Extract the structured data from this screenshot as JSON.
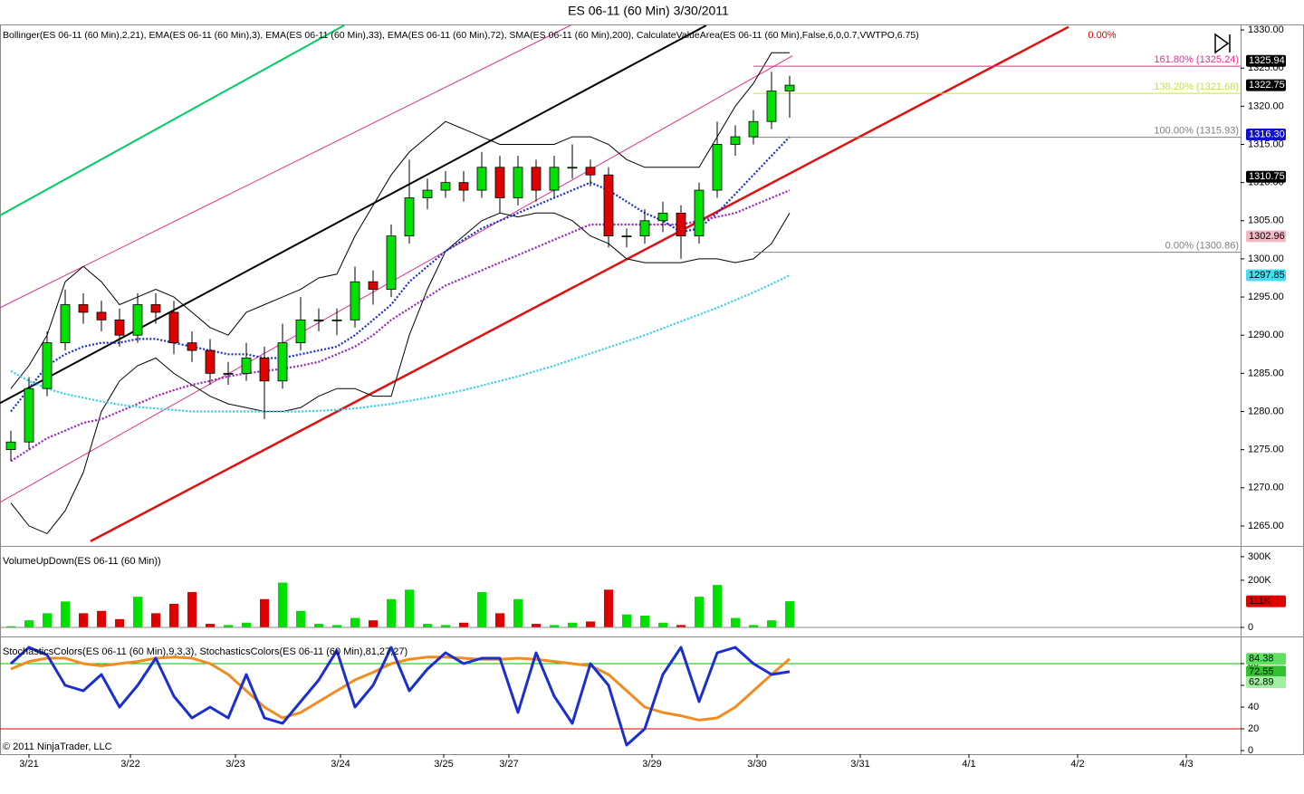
{
  "title": "ES 06-11 (60 Min)  3/30/2011",
  "copyright": "© 2011 NinjaTrader, LLC",
  "chart_data": [
    {
      "type": "candlestick",
      "label": "Bollinger(ES 06-11 (60 Min),2,21), EMA(ES 06-11 (60 Min),3), EMA(ES 06-11 (60 Min),33), EMA(ES 06-11 (60 Min),72), SMA(ES 06-11 (60 Min),200), CalculateValueArea(ES 06-11 (60 Min),False,6,0,0.7,VWTPO,6.75)",
      "xlim": [
        -0.6,
        67.9
      ],
      "xticks": [
        {
          "value": 1,
          "label": "3/21"
        },
        {
          "value": 6.6,
          "label": "3/22"
        },
        {
          "value": 12.4,
          "label": "3/23"
        },
        {
          "value": 18.2,
          "label": "3/24"
        },
        {
          "value": 23.9,
          "label": "3/25"
        },
        {
          "value": 27.5,
          "label": "3/27"
        },
        {
          "value": 35.4,
          "label": "3/29"
        },
        {
          "value": 41.2,
          "label": "3/30"
        },
        {
          "value": 46.9,
          "label": "3/31"
        },
        {
          "value": 52.9,
          "label": "4/1"
        },
        {
          "value": 58.9,
          "label": "4/2"
        },
        {
          "value": 64.9,
          "label": "4/3"
        }
      ],
      "ylim": [
        1262.5,
        1330.6
      ],
      "yticks": [
        {
          "value": 1265,
          "label": "1265.00"
        },
        {
          "value": 1270,
          "label": "1270.00"
        },
        {
          "value": 1275,
          "label": "1275.00"
        },
        {
          "value": 1280,
          "label": "1280.00"
        },
        {
          "value": 1285,
          "label": "1285.00"
        },
        {
          "value": 1290,
          "label": "1290.00"
        },
        {
          "value": 1295,
          "label": "1295.00"
        },
        {
          "value": 1300,
          "label": "1300.00"
        },
        {
          "value": 1305,
          "label": "1305.00"
        },
        {
          "value": 1310,
          "label": "1310.00"
        },
        {
          "value": 1315,
          "label": "1315.00"
        },
        {
          "value": 1320,
          "label": "1320.00"
        },
        {
          "value": 1325,
          "label": "1325.00"
        },
        {
          "value": 1330,
          "label": "1330.00"
        }
      ],
      "up_color": "#00e000",
      "down_color": "#e00000",
      "open": [
        1275,
        1276,
        1283,
        1289,
        1294,
        1293,
        1292,
        1290,
        1294,
        1293,
        1289,
        1288,
        1285,
        1285,
        1287,
        1284,
        1289,
        1292,
        1292,
        1292,
        1297,
        1296,
        1303,
        1308,
        1309,
        1310,
        1309,
        1312,
        1308,
        1312,
        1309,
        1312,
        1312,
        1311,
        1303,
        1303,
        1305,
        1306,
        1303,
        1309,
        1315,
        1316,
        1318,
        1322
      ],
      "high": [
        1277.5,
        1284.5,
        1290.5,
        1296,
        1295.5,
        1294.5,
        1293.5,
        1295.5,
        1295.5,
        1294.5,
        1290.5,
        1289.5,
        1286.5,
        1289,
        1288.5,
        1291.5,
        1295,
        1293.5,
        1293.5,
        1299,
        1298.5,
        1304.5,
        1313,
        1310.5,
        1311.5,
        1311.5,
        1314,
        1313.5,
        1313.5,
        1313,
        1313.5,
        1315,
        1313,
        1312,
        1304,
        1306.5,
        1307.5,
        1307,
        1310,
        1318,
        1317.5,
        1319.5,
        1324.5,
        1324
      ],
      "low": [
        1273.5,
        1275,
        1282,
        1288,
        1291.5,
        1290.5,
        1288.5,
        1289,
        1291.5,
        1287.5,
        1286.5,
        1283.5,
        1283.5,
        1284,
        1279,
        1283,
        1288,
        1290.5,
        1290,
        1291,
        1294,
        1295,
        1302,
        1306.5,
        1308,
        1307.5,
        1308,
        1306,
        1307,
        1307.5,
        1308,
        1310.5,
        1309.5,
        1301.5,
        1301.5,
        1302,
        1303.5,
        1300,
        1302,
        1308,
        1313.5,
        1315,
        1317,
        1318.5
      ],
      "close": [
        1276,
        1283,
        1289,
        1294,
        1293,
        1292,
        1290,
        1294,
        1293,
        1289,
        1288,
        1285,
        1285,
        1287,
        1284,
        1289,
        1292,
        1292,
        1292,
        1297,
        1296,
        1303,
        1308,
        1309,
        1310,
        1309,
        1312,
        1308,
        1312,
        1309,
        1312,
        1312,
        1311,
        1303,
        1303,
        1305,
        1306,
        1303,
        1309,
        1315,
        1316,
        1318,
        1322,
        1322.75
      ],
      "overlays": [
        {
          "color": "#000000",
          "style": "solid",
          "values": [
            1283,
            1286,
            1290,
            1297,
            1299,
            1297,
            1294,
            1295,
            1296,
            1295,
            1293,
            1291,
            1290,
            1293,
            1294,
            1295,
            1296,
            1297.5,
            1298,
            1303,
            1307,
            1311,
            1314,
            1316,
            1318,
            1317,
            1316,
            1315,
            1315,
            1315,
            1315,
            1316,
            1316,
            1315,
            1313,
            1312,
            1312,
            1312,
            1312,
            1316,
            1320,
            1323,
            1327,
            1327
          ]
        },
        {
          "color": "#000000",
          "style": "solid",
          "values": [
            1268,
            1265,
            1264,
            1267,
            1272,
            1280,
            1284,
            1286,
            1287,
            1285,
            1283.5,
            1282,
            1281,
            1280.5,
            1280,
            1280,
            1280.5,
            1282,
            1283,
            1283,
            1282,
            1282,
            1290,
            1296,
            1301,
            1303,
            1305,
            1306,
            1305.5,
            1306,
            1306,
            1305,
            1303,
            1302,
            1300,
            1299.5,
            1299.5,
            1299.5,
            1300,
            1300,
            1299.5,
            1300,
            1302,
            1306
          ]
        },
        {
          "color": "#1a2fd0",
          "style": "dotted",
          "values": [
            1280,
            1283,
            1286,
            1287.5,
            1288.5,
            1289,
            1289,
            1289.5,
            1289.5,
            1289,
            1288.5,
            1288,
            1287.5,
            1287.5,
            1287,
            1287,
            1287.5,
            1288,
            1288.5,
            1290,
            1292,
            1294,
            1297,
            1299,
            1301,
            1302.5,
            1304,
            1305,
            1306,
            1307,
            1308,
            1309,
            1310,
            1309,
            1307.5,
            1306,
            1305,
            1303.5,
            1304,
            1306,
            1308.5,
            1311,
            1313.5,
            1316
          ]
        },
        {
          "color": "#9a20c0",
          "style": "dotted",
          "values": [
            1273.5,
            1275,
            1276.5,
            1277.5,
            1278.5,
            1279,
            1280,
            1281,
            1282,
            1282.8,
            1283.5,
            1284,
            1284.6,
            1285,
            1285.3,
            1285.6,
            1286,
            1286.5,
            1287.5,
            1288.5,
            1290,
            1292,
            1293.5,
            1295,
            1296.5,
            1297.5,
            1298.5,
            1299.5,
            1300.5,
            1301.5,
            1302.5,
            1303.5,
            1304.5,
            1304.5,
            1304.5,
            1304.5,
            1304.5,
            1304.5,
            1305,
            1305.5,
            1306,
            1307,
            1308,
            1309
          ]
        },
        {
          "color": "#30d0f0",
          "style": "dotted",
          "values": [
            1285.3,
            1284,
            1283,
            1282.3,
            1281.8,
            1281.3,
            1280.9,
            1280.6,
            1280.4,
            1280.2,
            1280,
            1280,
            1280,
            1280,
            1280,
            1280,
            1280,
            1280.1,
            1280.2,
            1280.4,
            1280.7,
            1281,
            1281.4,
            1281.8,
            1282.3,
            1282.8,
            1283.4,
            1284,
            1284.6,
            1285.3,
            1286,
            1286.8,
            1287.6,
            1288.4,
            1289.2,
            1290,
            1290.9,
            1291.8,
            1292.7,
            1293.6,
            1294.6,
            1295.6,
            1296.7,
            1297.85
          ]
        }
      ],
      "trend_lines": [
        {
          "color": "#00cc66",
          "width": 2,
          "x": [
            -0.6,
            18.4
          ],
          "y": [
            1305.7,
            1330.6
          ]
        },
        {
          "color": "#000000",
          "width": 2,
          "x": [
            -0.6,
            38.4
          ],
          "y": [
            1281.1,
            1330.6
          ]
        },
        {
          "color": "#e01010",
          "width": 2.5,
          "x": [
            4.4,
            58.4
          ],
          "y": [
            1263,
            1330.4
          ]
        },
        {
          "color": "#e0308a",
          "width": 1,
          "x": [
            -0.6,
            30.9
          ],
          "y": [
            1293.6,
            1330.6
          ]
        },
        {
          "color": "#e0308a",
          "width": 1,
          "x": [
            -0.6,
            43.15
          ],
          "y": [
            1268.1,
            1326.6
          ]
        }
      ],
      "fib_levels": [
        {
          "value": 1325.24,
          "label": "161.80% (1325.24)",
          "color": "#e0308a"
        },
        {
          "value": 1321.68,
          "label": "138.20% (1321.68)",
          "color": "#c8e040"
        },
        {
          "value": 1315.93,
          "label": "100.00% (1315.93)",
          "color": "#808080"
        },
        {
          "value": 1300.86,
          "label": "0.00% (1300.86)",
          "color": "#808080"
        }
      ],
      "fib_start": 41,
      "annotation": "0.00%",
      "markers": [
        {
          "value": 1325.94,
          "label": "1325.94",
          "bg": "#000000",
          "fg": "#ffffff"
        },
        {
          "value": 1322.75,
          "label": "1322.75",
          "bg": "#000000",
          "fg": "#ffffff"
        },
        {
          "value": 1316.3,
          "label": "1316.30",
          "bg": "#1010c8",
          "fg": "#ffffff"
        },
        {
          "value": 1310.75,
          "label": "1310.75",
          "bg": "#000000",
          "fg": "#ffffff"
        },
        {
          "value": 1302.96,
          "label": "1302.96",
          "bg": "#f4b8c4",
          "fg": "#000000"
        },
        {
          "value": 1297.85,
          "label": "1297.85",
          "bg": "#40e0f0",
          "fg": "#000000"
        }
      ]
    },
    {
      "type": "bar",
      "label": "VolumeUpDown(ES 06-11 (60 Min))",
      "xlim": [
        -0.6,
        67.9
      ],
      "ylim": [
        -27000,
        338000
      ],
      "yticks": [
        {
          "value": 0,
          "label": "0"
        },
        {
          "value": 200000,
          "label": "200K"
        },
        {
          "value": 300000,
          "label": "300K"
        }
      ],
      "values": [
        5000,
        30000,
        60000,
        110000,
        60000,
        70000,
        35000,
        130000,
        60000,
        100000,
        150000,
        15000,
        10000,
        20000,
        120000,
        190000,
        70000,
        15000,
        10000,
        40000,
        30000,
        120000,
        160000,
        15000,
        10000,
        20000,
        150000,
        60000,
        120000,
        15000,
        10000,
        20000,
        25000,
        160000,
        55000,
        50000,
        20000,
        10000,
        130000,
        180000,
        40000,
        10000,
        30000,
        111000
      ],
      "markers": [
        {
          "value": 111000,
          "label": "111K",
          "bg": "#e00000",
          "fg": "#000000"
        }
      ]
    },
    {
      "type": "line",
      "label": "StochasticsColors(ES 06-11 (60 Min),9,3,3), StochasticsColors(ES 06-11 (60 Min),81,27,27)",
      "xlim": [
        -0.6,
        67.9
      ],
      "ylim": [
        -2.5,
        103.3
      ],
      "yticks": [
        0,
        20,
        40,
        60,
        80
      ],
      "levels": [
        {
          "value": 80,
          "color": "#00c000"
        },
        {
          "value": 20,
          "color": "#e00000"
        }
      ],
      "series": [
        {
          "color": "#f08c20",
          "width": 3,
          "values": [
            75,
            82,
            85,
            85,
            80,
            78,
            80,
            82,
            85,
            86,
            85,
            80,
            70,
            55,
            40,
            30,
            35,
            45,
            55,
            65,
            72,
            80,
            84,
            86,
            86,
            85,
            84,
            84,
            85,
            84,
            82,
            80,
            78,
            70,
            55,
            40,
            35,
            32,
            28,
            30,
            40,
            55,
            70,
            84.38
          ]
        },
        {
          "color": "#1a2fd0",
          "width": 3,
          "values": [
            80,
            95,
            88,
            60,
            55,
            70,
            40,
            60,
            85,
            50,
            30,
            40,
            30,
            70,
            30,
            25,
            45,
            65,
            92,
            40,
            60,
            95,
            55,
            75,
            90,
            80,
            85,
            85,
            35,
            90,
            50,
            25,
            80,
            60,
            5,
            20,
            70,
            95,
            45,
            90,
            95,
            80,
            70,
            72.55
          ]
        }
      ],
      "markers": [
        {
          "value": 84.38,
          "bg": "#60e060",
          "fg": "#000000"
        },
        {
          "value": 72.55,
          "bg": "#30c030",
          "fg": "#000000"
        },
        {
          "value": 62.89,
          "bg": "#a0f0a0",
          "fg": "#000000"
        }
      ]
    }
  ]
}
